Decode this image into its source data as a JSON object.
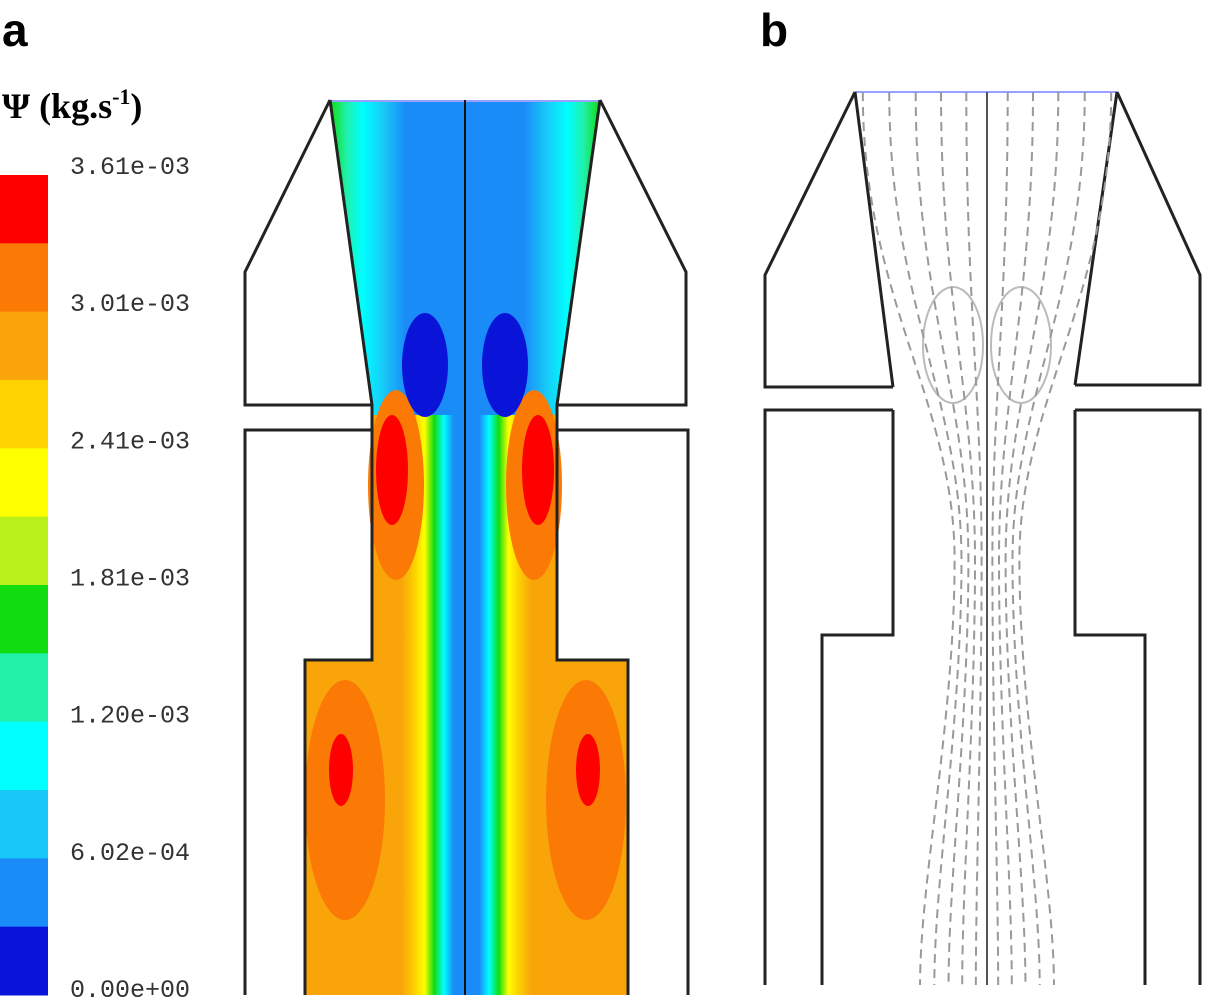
{
  "panels": [
    {
      "label": "a"
    },
    {
      "label": "b"
    }
  ],
  "colorbar": {
    "title": "Ψ (kg.s",
    "title_superscript": "-1",
    "title_close": ")",
    "ticks": [
      "3.61e-03",
      "3.01e-03",
      "2.41e-03",
      "1.81e-03",
      "1.20e-03",
      "6.02e-04",
      "0.00e+00"
    ],
    "colors": [
      "#ff0000",
      "#fb7a05",
      "#f9a50a",
      "#fdd200",
      "#ffff00",
      "#b8f01a",
      "#10dc10",
      "#20f0a8",
      "#00ffff",
      "#18c8f8",
      "#1a8cf8",
      "#0a14d8"
    ]
  }
}
